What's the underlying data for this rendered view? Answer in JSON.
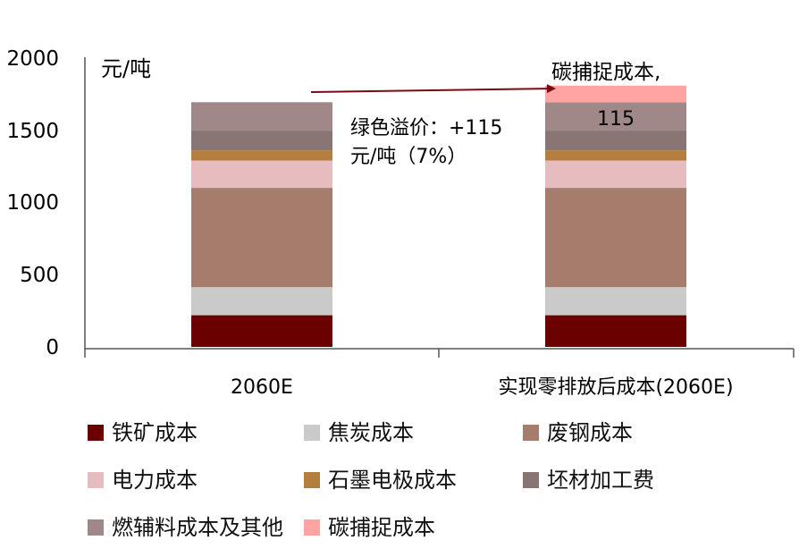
{
  "chart_data": {
    "type": "bar",
    "stacked": true,
    "y_unit_label": "元/吨",
    "ylim": [
      0,
      2000
    ],
    "yticks": [
      "0",
      "500",
      "1000",
      "1500",
      "2000"
    ],
    "categories": [
      "2060E",
      "实现零排放后成本(2060E)"
    ],
    "series": [
      {
        "name": "铁矿成本",
        "color": "#6b0000",
        "values": [
          220,
          220
        ]
      },
      {
        "name": "焦炭成本",
        "color": "#cacaca",
        "values": [
          195,
          195
        ]
      },
      {
        "name": "废钢成本",
        "color": "#a67c6c",
        "values": [
          690,
          690
        ]
      },
      {
        "name": "电力成本",
        "color": "#e6bcbe",
        "values": [
          190,
          190
        ]
      },
      {
        "name": "石墨电极成本",
        "color": "#b37e3e",
        "values": [
          70,
          70
        ]
      },
      {
        "name": "坯材加工费",
        "color": "#8a7575",
        "values": [
          135,
          135
        ]
      },
      {
        "name": "燃辅料成本及其他",
        "color": "#a08888",
        "values": [
          200,
          200
        ]
      },
      {
        "name": "碳捕捉成本",
        "color": "#ffa3a3",
        "values": [
          0,
          115
        ]
      }
    ],
    "annotations": {
      "green_premium_line1": "绿色溢价：+115",
      "green_premium_line2": "元/吨（7%）",
      "ccs_label": "碳捕捉成本,",
      "ccs_value": "115"
    },
    "arrow_color": "#7a0a14",
    "grid": false,
    "legend_position": "bottom"
  }
}
